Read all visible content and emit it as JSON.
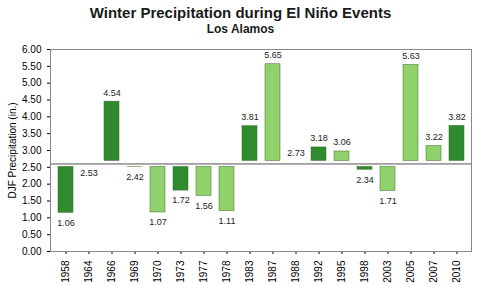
{
  "chart_data": {
    "type": "bar",
    "title": "Winter Precipitation during El Niño Events",
    "subtitle": "Los Alamos",
    "y_label": "DJF Precipitation (in.)",
    "categories": [
      "1958",
      "1964",
      "1966",
      "1969",
      "1970",
      "1973",
      "1977",
      "1978",
      "1983",
      "1987",
      "1988",
      "1992",
      "1995",
      "1998",
      "2003",
      "2005",
      "2007",
      "2010"
    ],
    "values": [
      1.06,
      2.53,
      4.54,
      2.42,
      1.07,
      1.72,
      1.56,
      1.11,
      3.81,
      5.65,
      2.73,
      3.18,
      3.06,
      2.34,
      1.71,
      5.63,
      3.22,
      3.82
    ],
    "colors": [
      "#2e8b2e",
      "#8fd16a",
      "#2e8b2e",
      "#8fd16a",
      "#8fd16a",
      "#2e8b2e",
      "#8fd16a",
      "#8fd16a",
      "#2e8b2e",
      "#8fd16a",
      "#8fd16a",
      "#2e8b2e",
      "#8fd16a",
      "#2e8b2e",
      "#8fd16a",
      "#8fd16a",
      "#8fd16a",
      "#2e8b2e"
    ],
    "baseline": 2.6,
    "ylim": [
      0,
      6
    ],
    "yticks": [
      {
        "value": 0,
        "label": "0.00"
      },
      {
        "value": 0.5,
        "label": "0.50"
      },
      {
        "value": 1,
        "label": "1.00"
      },
      {
        "value": 1.5,
        "label": "1.50"
      },
      {
        "value": 2,
        "label": "2.00"
      },
      {
        "value": 2.5,
        "label": "2.50"
      },
      {
        "value": 3,
        "label": "3.00"
      },
      {
        "value": 3.5,
        "label": "3.50"
      },
      {
        "value": 4,
        "label": "4.00"
      },
      {
        "value": 4.5,
        "label": "4.50"
      },
      {
        "value": 5,
        "label": "5.00"
      },
      {
        "value": 5.5,
        "label": "5.50"
      },
      {
        "value": 6,
        "label": "6.00"
      }
    ],
    "data_labels": true,
    "grid": false
  }
}
